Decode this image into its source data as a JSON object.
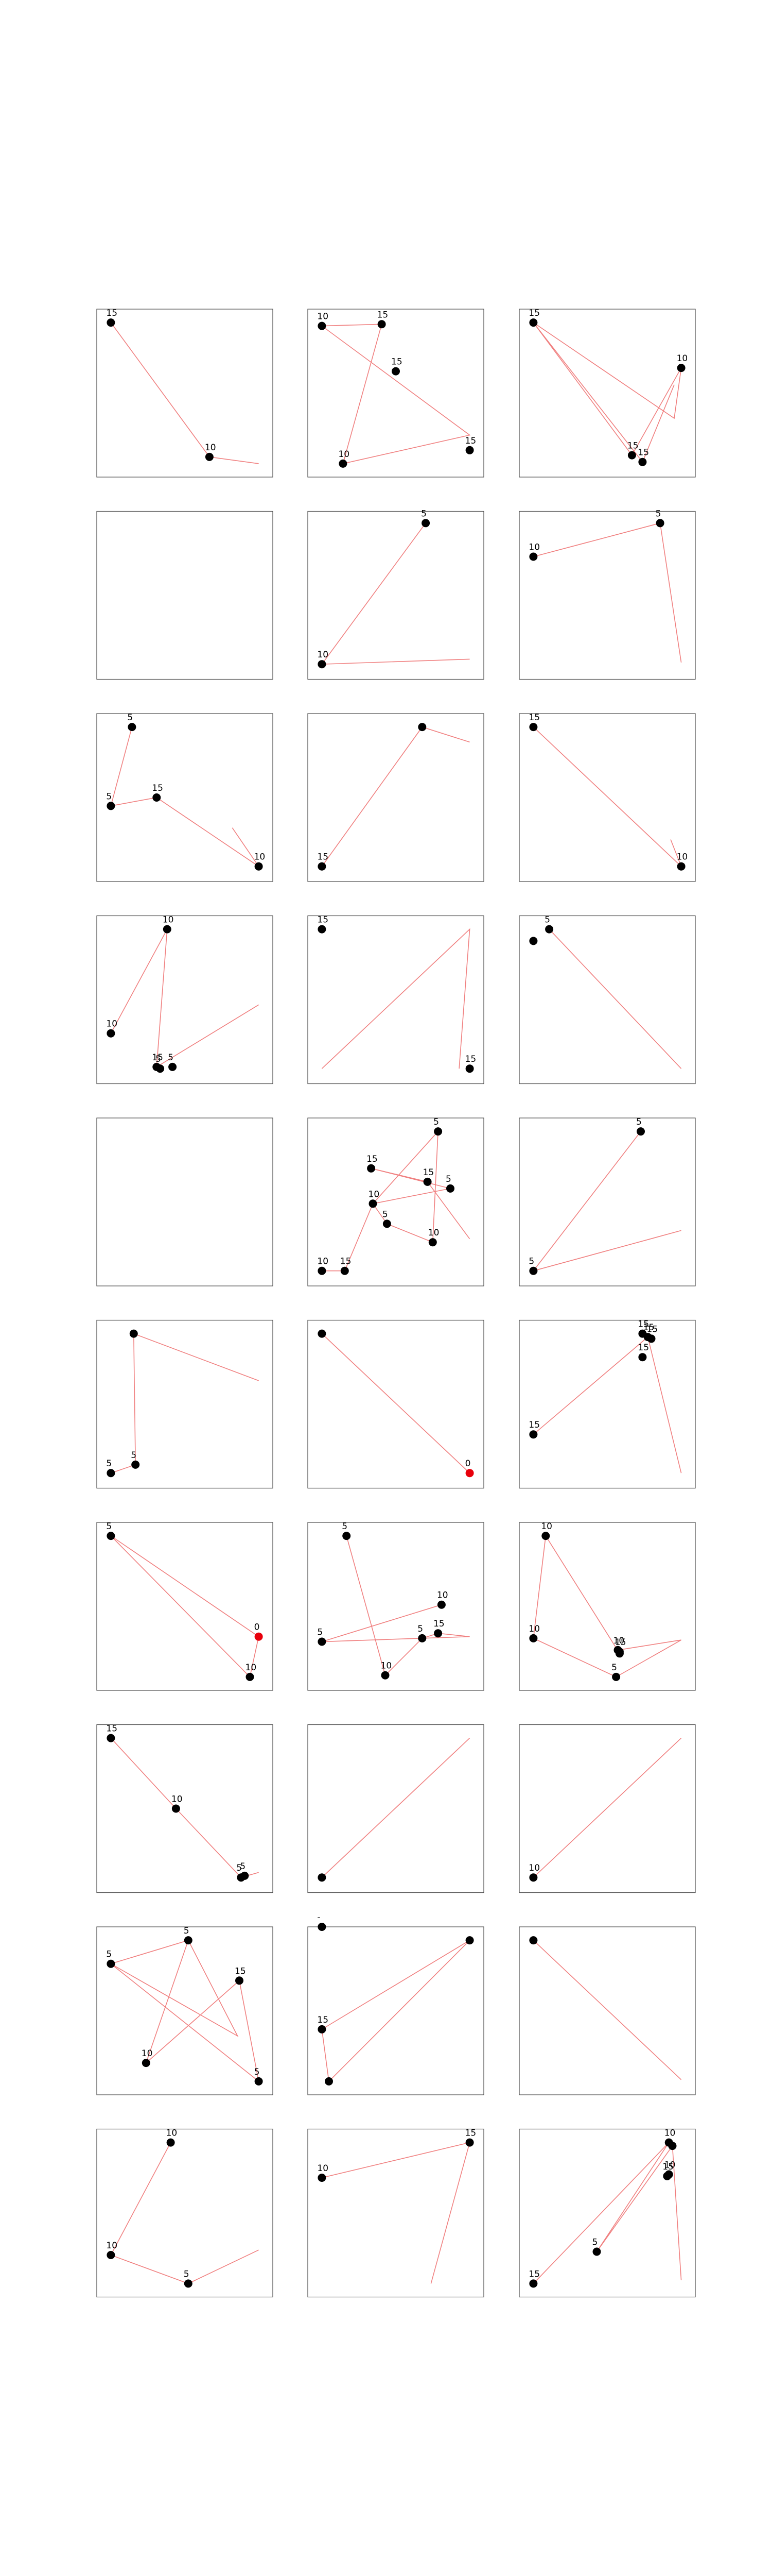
{
  "chart_data": {
    "type": "scatter",
    "layout": {
      "rows": 10,
      "cols": 3
    },
    "axes": {
      "xlim": [
        0,
        100
      ],
      "ylim": [
        0,
        100
      ],
      "ticks": false,
      "grid": false,
      "legend": false
    },
    "colors": {
      "point": "#000000",
      "highlight": "#e8000b",
      "line": "#f08080",
      "frame": "#4d4d4d"
    },
    "panels": [
      {
        "points": [
          {
            "x": 8,
            "y": 92,
            "label": "15"
          },
          {
            "x": 64,
            "y": 12,
            "label": "10"
          }
        ],
        "path": [
          [
            8,
            92
          ],
          [
            64,
            12
          ],
          [
            92,
            8
          ]
        ]
      },
      {
        "points": [
          {
            "x": 8,
            "y": 90,
            "label": "10"
          },
          {
            "x": 42,
            "y": 91,
            "label": "15"
          },
          {
            "x": 50,
            "y": 63,
            "label": "15"
          },
          {
            "x": 92,
            "y": 16,
            "label": "15"
          },
          {
            "x": 20,
            "y": 8,
            "label": "10"
          }
        ],
        "path": [
          [
            8,
            90
          ],
          [
            42,
            91
          ],
          [
            20,
            8
          ],
          [
            92,
            25
          ],
          [
            8,
            90
          ]
        ]
      },
      {
        "points": [
          {
            "x": 8,
            "y": 92,
            "label": "15"
          },
          {
            "x": 92,
            "y": 65,
            "label": "10"
          },
          {
            "x": 64,
            "y": 13,
            "label": "15"
          },
          {
            "x": 70,
            "y": 9,
            "label": "15"
          }
        ],
        "path": [
          [
            8,
            92
          ],
          [
            64,
            13
          ],
          [
            92,
            65
          ],
          [
            88,
            35
          ],
          [
            8,
            92
          ],
          [
            70,
            9
          ],
          [
            88,
            55
          ]
        ]
      },
      {
        "points": [],
        "path": []
      },
      {
        "points": [
          {
            "x": 67,
            "y": 93,
            "label": "5"
          },
          {
            "x": 8,
            "y": 9,
            "label": "10"
          }
        ],
        "path": [
          [
            67,
            93
          ],
          [
            8,
            9
          ],
          [
            92,
            12
          ]
        ]
      },
      {
        "points": [
          {
            "x": 80,
            "y": 93,
            "label": "5"
          },
          {
            "x": 8,
            "y": 73,
            "label": "10"
          }
        ],
        "path": [
          [
            8,
            73
          ],
          [
            80,
            93
          ],
          [
            92,
            10
          ]
        ]
      },
      {
        "points": [
          {
            "x": 20,
            "y": 92,
            "label": "5"
          },
          {
            "x": 8,
            "y": 45,
            "label": "5"
          },
          {
            "x": 34,
            "y": 50,
            "label": "15"
          },
          {
            "x": 92,
            "y": 9,
            "label": "10"
          }
        ],
        "path": [
          [
            20,
            92
          ],
          [
            8,
            45
          ],
          [
            34,
            50
          ],
          [
            92,
            9
          ],
          [
            77,
            32
          ]
        ]
      },
      {
        "points": [
          {
            "x": 65,
            "y": 92,
            "label": ""
          },
          {
            "x": 8,
            "y": 9,
            "label": "15"
          }
        ],
        "path": [
          [
            92,
            83
          ],
          [
            65,
            92
          ],
          [
            8,
            9
          ]
        ]
      },
      {
        "points": [
          {
            "x": 8,
            "y": 92,
            "label": "15"
          },
          {
            "x": 92,
            "y": 9,
            "label": "10"
          }
        ],
        "path": [
          [
            8,
            92
          ],
          [
            92,
            9
          ],
          [
            86,
            25
          ]
        ]
      },
      {
        "points": [
          {
            "x": 40,
            "y": 92,
            "label": "10"
          },
          {
            "x": 8,
            "y": 30,
            "label": "10"
          },
          {
            "x": 34,
            "y": 10,
            "label": "15"
          },
          {
            "x": 36,
            "y": 9,
            "label": "5"
          },
          {
            "x": 43,
            "y": 10,
            "label": "5"
          }
        ],
        "path": [
          [
            92,
            47
          ],
          [
            34,
            10
          ],
          [
            40,
            92
          ],
          [
            8,
            30
          ]
        ]
      },
      {
        "points": [
          {
            "x": 8,
            "y": 92,
            "label": "15"
          },
          {
            "x": 92,
            "y": 9,
            "label": "15"
          }
        ],
        "path": [
          [
            8,
            9
          ],
          [
            92,
            92
          ],
          [
            86,
            9
          ]
        ]
      },
      {
        "points": [
          {
            "x": 17,
            "y": 92,
            "label": "5"
          },
          {
            "x": 8,
            "y": 85,
            "label": ""
          }
        ],
        "path": [
          [
            17,
            92
          ],
          [
            92,
            9
          ]
        ]
      },
      {
        "points": [],
        "path": []
      },
      {
        "points": [
          {
            "x": 74,
            "y": 92,
            "label": "5"
          },
          {
            "x": 36,
            "y": 70,
            "label": "15"
          },
          {
            "x": 81,
            "y": 58,
            "label": "5"
          },
          {
            "x": 37,
            "y": 49,
            "label": "10"
          },
          {
            "x": 45,
            "y": 37,
            "label": "5"
          },
          {
            "x": 68,
            "y": 62,
            "label": "15"
          },
          {
            "x": 71,
            "y": 26,
            "label": "10"
          },
          {
            "x": 8,
            "y": 9,
            "label": "10"
          },
          {
            "x": 21,
            "y": 9,
            "label": "15"
          }
        ],
        "path": [
          [
            8,
            9
          ],
          [
            21,
            9
          ],
          [
            37,
            49
          ],
          [
            74,
            92
          ],
          [
            71,
            26
          ],
          [
            45,
            37
          ],
          [
            37,
            49
          ],
          [
            81,
            58
          ],
          [
            36,
            70
          ],
          [
            68,
            62
          ],
          [
            92,
            28
          ]
        ]
      },
      {
        "points": [
          {
            "x": 69,
            "y": 92,
            "label": "5"
          },
          {
            "x": 8,
            "y": 9,
            "label": "5"
          }
        ],
        "path": [
          [
            92,
            33
          ],
          [
            8,
            9
          ],
          [
            69,
            92
          ]
        ]
      },
      {
        "points": [
          {
            "x": 21,
            "y": 92,
            "label": ""
          },
          {
            "x": 22,
            "y": 14,
            "label": "5"
          },
          {
            "x": 8,
            "y": 9,
            "label": "5"
          }
        ],
        "path": [
          [
            92,
            64
          ],
          [
            21,
            92
          ],
          [
            22,
            14
          ],
          [
            8,
            9
          ]
        ]
      },
      {
        "points": [
          {
            "x": 8,
            "y": 92,
            "label": ""
          },
          {
            "x": 92,
            "y": 9,
            "label": "0"
          }
        ],
        "path": [
          [
            8,
            92
          ],
          [
            92,
            9
          ]
        ]
      },
      {
        "points": [
          {
            "x": 70,
            "y": 92,
            "label": "15"
          },
          {
            "x": 73,
            "y": 90,
            "label": "15"
          },
          {
            "x": 75,
            "y": 89,
            "label": "15"
          },
          {
            "x": 70,
            "y": 78,
            "label": "15"
          },
          {
            "x": 8,
            "y": 32,
            "label": "15"
          }
        ],
        "path": [
          [
            8,
            32
          ],
          [
            73,
            90
          ],
          [
            92,
            9
          ]
        ]
      },
      {
        "points": [
          {
            "x": 8,
            "y": 92,
            "label": "5"
          },
          {
            "x": 92,
            "y": 32,
            "label": "0"
          },
          {
            "x": 87,
            "y": 8,
            "label": "10"
          }
        ],
        "path": [
          [
            8,
            92
          ],
          [
            92,
            32
          ],
          [
            87,
            8
          ],
          [
            8,
            92
          ]
        ]
      },
      {
        "points": [
          {
            "x": 22,
            "y": 92,
            "label": "5"
          },
          {
            "x": 76,
            "y": 51,
            "label": "10"
          },
          {
            "x": 8,
            "y": 29,
            "label": "5"
          },
          {
            "x": 65,
            "y": 31,
            "label": "5"
          },
          {
            "x": 74,
            "y": 34,
            "label": "15"
          },
          {
            "x": 44,
            "y": 9,
            "label": "10"
          }
        ],
        "path": [
          [
            22,
            92
          ],
          [
            44,
            9
          ],
          [
            65,
            31
          ],
          [
            74,
            34
          ],
          [
            92,
            32
          ],
          [
            8,
            29
          ],
          [
            76,
            51
          ]
        ]
      },
      {
        "points": [
          {
            "x": 15,
            "y": 92,
            "label": "10"
          },
          {
            "x": 8,
            "y": 31,
            "label": "10"
          },
          {
            "x": 55,
            "y": 8,
            "label": "5"
          },
          {
            "x": 56,
            "y": 24,
            "label": "10"
          },
          {
            "x": 57,
            "y": 23,
            "label": "15"
          },
          {
            "x": 57,
            "y": 22,
            "label": ""
          }
        ],
        "path": [
          [
            8,
            31
          ],
          [
            15,
            92
          ],
          [
            57,
            22
          ],
          [
            56,
            24
          ],
          [
            92,
            30
          ],
          [
            55,
            8
          ],
          [
            8,
            31
          ]
        ]
      },
      {
        "points": [
          {
            "x": 8,
            "y": 92,
            "label": "15"
          },
          {
            "x": 45,
            "y": 50,
            "label": "10"
          },
          {
            "x": 82,
            "y": 9,
            "label": "5"
          },
          {
            "x": 84,
            "y": 10,
            "label": "5"
          }
        ],
        "path": [
          [
            8,
            92
          ],
          [
            45,
            50
          ],
          [
            82,
            9
          ],
          [
            92,
            12
          ]
        ]
      },
      {
        "points": [
          {
            "x": 8,
            "y": 9,
            "label": ""
          }
        ],
        "path": [
          [
            8,
            9
          ],
          [
            92,
            92
          ]
        ]
      },
      {
        "points": [
          {
            "x": 8,
            "y": 9,
            "label": "10"
          }
        ],
        "path": [
          [
            8,
            9
          ],
          [
            92,
            92
          ]
        ]
      },
      {
        "points": [
          {
            "x": 52,
            "y": 92,
            "label": "5"
          },
          {
            "x": 8,
            "y": 78,
            "label": "5"
          },
          {
            "x": 81,
            "y": 68,
            "label": "15"
          },
          {
            "x": 28,
            "y": 19,
            "label": "10"
          },
          {
            "x": 92,
            "y": 8,
            "label": "5"
          }
        ],
        "path": [
          [
            8,
            78
          ],
          [
            52,
            92
          ],
          [
            28,
            19
          ],
          [
            81,
            68
          ],
          [
            92,
            8
          ],
          [
            8,
            78
          ],
          [
            80,
            35
          ],
          [
            52,
            92
          ]
        ]
      },
      {
        "points": [
          {
            "x": 8,
            "y": 100,
            "label": "-"
          },
          {
            "x": 92,
            "y": 92,
            "label": ""
          },
          {
            "x": 8,
            "y": 39,
            "label": "15"
          },
          {
            "x": 12,
            "y": 8,
            "label": ""
          }
        ],
        "path": [
          [
            8,
            39
          ],
          [
            92,
            92
          ],
          [
            12,
            8
          ],
          [
            8,
            39
          ]
        ]
      },
      {
        "points": [
          {
            "x": 8,
            "y": 92,
            "label": ""
          }
        ],
        "path": [
          [
            8,
            92
          ],
          [
            92,
            9
          ]
        ]
      },
      {
        "points": [
          {
            "x": 42,
            "y": 92,
            "label": "10"
          },
          {
            "x": 8,
            "y": 25,
            "label": "10"
          },
          {
            "x": 52,
            "y": 8,
            "label": "5"
          }
        ],
        "path": [
          [
            92,
            28
          ],
          [
            52,
            8
          ],
          [
            8,
            25
          ],
          [
            42,
            92
          ]
        ]
      },
      {
        "points": [
          {
            "x": 8,
            "y": 71,
            "label": "10"
          },
          {
            "x": 92,
            "y": 92,
            "label": "15"
          }
        ],
        "path": [
          [
            8,
            71
          ],
          [
            92,
            92
          ],
          [
            70,
            8
          ]
        ]
      },
      {
        "points": [
          {
            "x": 85,
            "y": 92,
            "label": "10"
          },
          {
            "x": 87,
            "y": 90,
            "label": ""
          },
          {
            "x": 85,
            "y": 73,
            "label": "10"
          },
          {
            "x": 84,
            "y": 72,
            "label": "15"
          },
          {
            "x": 44,
            "y": 27,
            "label": "5"
          },
          {
            "x": 8,
            "y": 8,
            "label": "15"
          }
        ],
        "path": [
          [
            8,
            8
          ],
          [
            85,
            92
          ],
          [
            44,
            27
          ],
          [
            87,
            90
          ],
          [
            92,
            10
          ]
        ]
      }
    ]
  }
}
